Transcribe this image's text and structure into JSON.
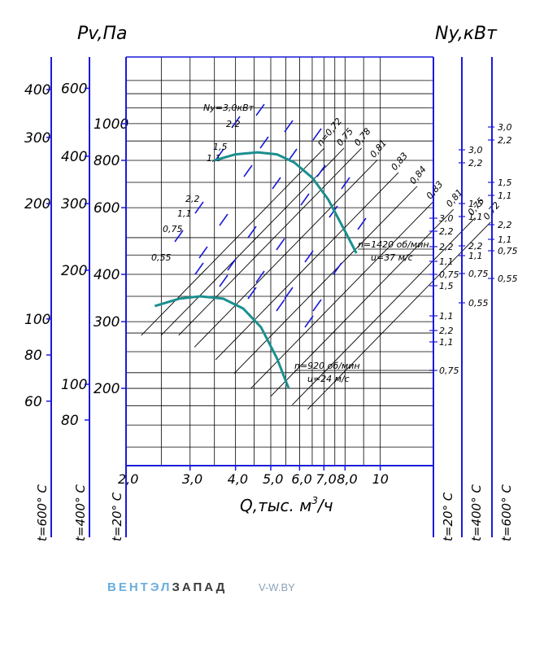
{
  "chart_data": {
    "type": "line",
    "title": "",
    "left_label": "Pv,Па",
    "right_label": "Ny,кВт",
    "xlabel": "Q,тыс. м",
    "xlabel_exp": "3",
    "xlabel_tail": "/ч",
    "x_ticks": [
      "2,0",
      "3,0",
      "4,0",
      "5,0",
      "6,0",
      "7,0",
      "8,0",
      "10"
    ],
    "x_tick_values": [
      2.0,
      3.0,
      4.0,
      5.0,
      6.0,
      7.0,
      8.0,
      10.0
    ],
    "y_ticks_20": [
      "1000",
      "800",
      "600",
      "400",
      "300",
      "200"
    ],
    "y_ticks_400": [
      "600",
      "400",
      "300",
      "200",
      "100",
      "80"
    ],
    "y_ticks_600": [
      "400",
      "300",
      "200",
      "100",
      "80",
      "60"
    ],
    "temp_left": [
      "t=600° C",
      "t=400° C",
      "t=20° C"
    ],
    "temp_right": [
      "t=20° C",
      "t=400° C",
      "t=600° C"
    ],
    "efficiency_labels": [
      "n=0,72",
      "0,75",
      "0,78",
      "0,81",
      "0,83",
      "0,84",
      "0,83",
      "0,81",
      "0,75",
      "0,72"
    ],
    "power_labels_1420": [
      "Ny=3,0кВт",
      "2,2",
      "1,5",
      "1,1"
    ],
    "power_labels_920": [
      "2,2",
      "1,1",
      "0,75",
      "0,55"
    ],
    "right_power_20": [
      "3,0",
      "2,2",
      "2,2",
      "1,1",
      "0,75",
      "1,5",
      "1,1",
      "2,2",
      "1,1",
      "0,75",
      "0,55"
    ],
    "right_power_400": [
      "3,0",
      "2,2",
      "1,5",
      "1,1",
      "2,2",
      "1,1",
      "0,75",
      "0,55"
    ],
    "right_power_600": [
      "3,0",
      "2,2",
      "1,5",
      "1,1",
      "2,2",
      "1,1",
      "0,75",
      "0,55"
    ],
    "annotation_1420": "n=1420 об/мин",
    "annotation_1420_u": "u=37 м/с",
    "annotation_920": "n=920 об/мин",
    "annotation_920_u": "u=24 м/с",
    "series": [
      {
        "name": "n=1420 об/мин",
        "x": [
          3.5,
          4.0,
          4.6,
          5.2,
          5.8,
          6.5,
          7.2,
          8.0,
          8.6
        ],
        "y": [
          800,
          830,
          840,
          830,
          790,
          720,
          630,
          520,
          455
        ]
      },
      {
        "name": "n=920 об/мин",
        "x": [
          2.4,
          2.8,
          3.2,
          3.7,
          4.2,
          4.7,
          5.2,
          5.6
        ],
        "y": [
          330,
          345,
          350,
          345,
          325,
          290,
          240,
          200
        ]
      }
    ],
    "colors": {
      "grid": "#000000",
      "axis": "#1a1adb",
      "curve": "#1b8f8f",
      "ticks": "#1a1adb"
    },
    "grid": true
  },
  "footer": {
    "brand_part1": "ВЕНТЭЛ",
    "brand_part2": "ЗАПАД",
    "site": "V-W.BY"
  }
}
